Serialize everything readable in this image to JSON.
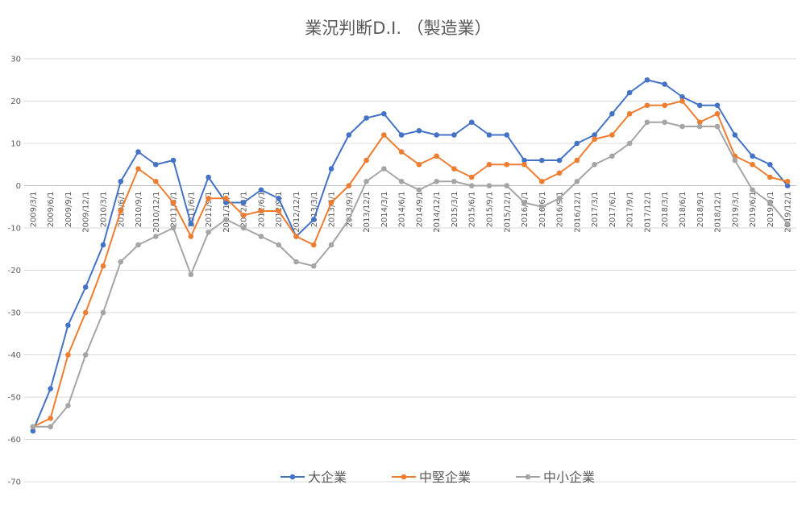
{
  "chart_data": {
    "type": "line",
    "title": "業況判断D.I. （製造業）",
    "xlabel": "",
    "ylabel": "",
    "ylim": [
      -70,
      30
    ],
    "ytick_step": 10,
    "grid": "horizontal",
    "legend_position": "bottom",
    "categories": [
      "2009/3/1",
      "2009/6/1",
      "2009/9/1",
      "2009/12/1",
      "2010/3/1",
      "2010/6/1",
      "2010/9/1",
      "2010/12/1",
      "2011/3/1",
      "2011/6/1",
      "2011/9/1",
      "2011/12/1",
      "2012/3/1",
      "2012/6/1",
      "2012/9/1",
      "2012/12/1",
      "2013/3/1",
      "2013/6/1",
      "2013/9/1",
      "2013/12/1",
      "2014/3/1",
      "2014/6/1",
      "2014/9/1",
      "2014/12/1",
      "2015/3/1",
      "2015/6/1",
      "2015/9/1",
      "2015/12/1",
      "2016/3/1",
      "2016/6/1",
      "2016/9/1",
      "2016/12/1",
      "2017/3/1",
      "2017/6/1",
      "2017/9/1",
      "2017/12/1",
      "2018/3/1",
      "2018/6/1",
      "2018/9/1",
      "2018/12/1",
      "2019/3/1",
      "2019/6/1",
      "2019/9/1",
      "2019/12/1"
    ],
    "series": [
      {
        "name": "大企業",
        "color": "#4472C4",
        "values": [
          -58,
          -48,
          -33,
          -24,
          -14,
          1,
          8,
          5,
          6,
          -9,
          2,
          -4,
          -4,
          -1,
          -3,
          -12,
          -8,
          4,
          12,
          16,
          17,
          12,
          13,
          12,
          12,
          15,
          12,
          12,
          6,
          6,
          6,
          10,
          12,
          17,
          22,
          25,
          24,
          21,
          19,
          19,
          12,
          7,
          5,
          0
        ]
      },
      {
        "name": "中堅企業",
        "color": "#ED7D31",
        "values": [
          -57,
          -55,
          -40,
          -30,
          -19,
          -6,
          4,
          1,
          -4,
          -12,
          -3,
          -3,
          -7,
          -6,
          -6,
          -12,
          -14,
          -4,
          0,
          6,
          12,
          8,
          5,
          7,
          4,
          2,
          5,
          5,
          5,
          1,
          3,
          6,
          11,
          12,
          17,
          19,
          19,
          20,
          15,
          17,
          7,
          5,
          2,
          1
        ]
      },
      {
        "name": "中小企業",
        "color": "#A5A5A5",
        "values": [
          -57,
          -57,
          -52,
          -40,
          -30,
          -18,
          -14,
          -12,
          -10,
          -21,
          -11,
          -8,
          -10,
          -12,
          -14,
          -18,
          -19,
          -14,
          -8,
          1,
          4,
          1,
          -1,
          1,
          1,
          0,
          0,
          0,
          -4,
          -5,
          -3,
          1,
          5,
          7,
          10,
          15,
          15,
          14,
          14,
          14,
          6,
          -1,
          -4,
          -9
        ]
      }
    ]
  }
}
